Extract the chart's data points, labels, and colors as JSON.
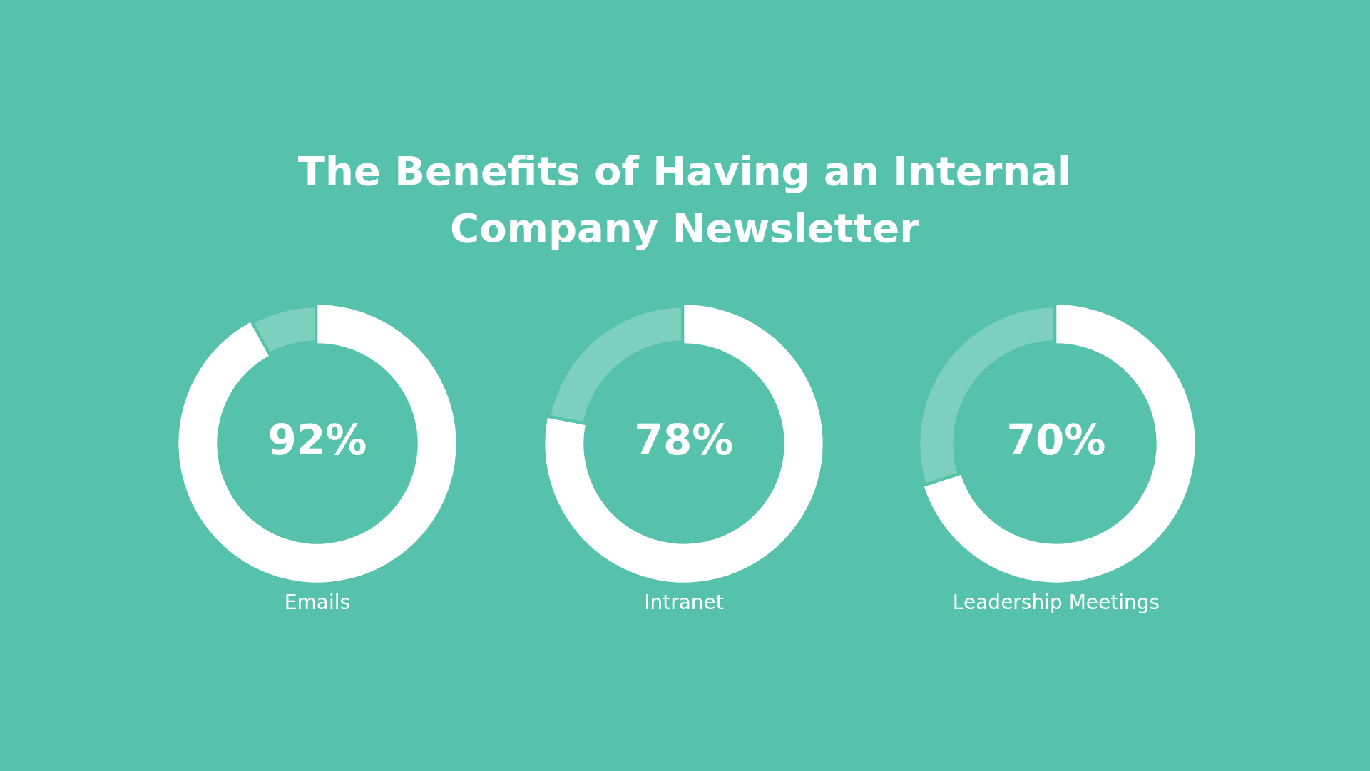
{
  "chart_data": [
    {
      "type": "donut",
      "title": "The Benefits of Having an Internal Company Newsletter",
      "xlabel": "Emails",
      "categories": [
        null,
        null
      ],
      "values": [
        92,
        8
      ],
      "colors": [
        "#ffffff",
        "#7dcfbe"
      ],
      "value_labels": [
        "92%",
        null
      ]
    },
    {
      "type": "donut",
      "xlabel": "Intranet",
      "categories": [
        null,
        null
      ],
      "values": [
        78,
        22
      ],
      "colors": [
        "#ffffff",
        "#7dcfbe"
      ],
      "value_labels": [
        "78%",
        null
      ]
    },
    {
      "type": "donut",
      "xlabel": "Leadership Meetings",
      "categories": [
        null,
        null
      ],
      "values": [
        70,
        30
      ],
      "colors": [
        "#ffffff",
        "#7dcfbe"
      ],
      "value_labels": [
        "70%",
        null
      ]
    }
  ]
}
